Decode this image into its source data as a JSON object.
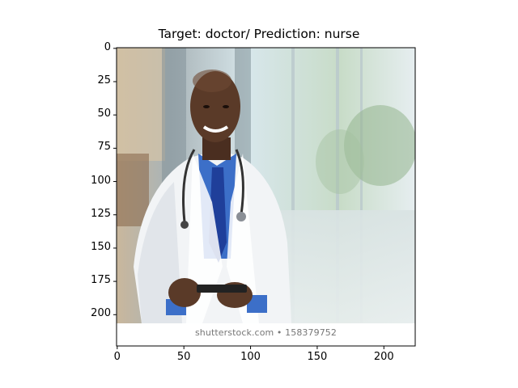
{
  "chart_data": {
    "type": "image",
    "title": "Target: doctor/ Prediction: nurse",
    "xlim": [
      -0.5,
      223.5
    ],
    "ylim": [
      223.5,
      -0.5
    ],
    "xticks": [
      0,
      50,
      100,
      150,
      200
    ],
    "yticks": [
      0,
      25,
      50,
      75,
      100,
      125,
      150,
      175,
      200
    ],
    "image_description_watermark": "shutterstock.com • 158379752"
  },
  "colors": {
    "skin": "#5a3a28",
    "coat": "#f2f4f6",
    "shirt": "#3c6fc8",
    "tie": "#1f3f9a",
    "bg_left": "#b8a892",
    "bg_right": "#cfe0e6"
  }
}
